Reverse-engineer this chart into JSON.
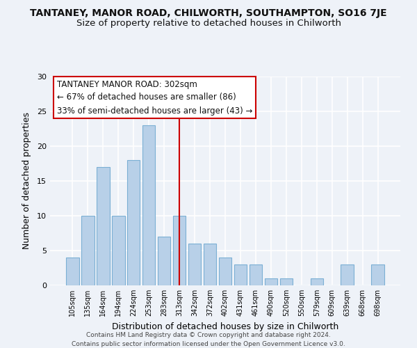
{
  "title": "TANTANEY, MANOR ROAD, CHILWORTH, SOUTHAMPTON, SO16 7JE",
  "subtitle": "Size of property relative to detached houses in Chilworth",
  "xlabel": "Distribution of detached houses by size in Chilworth",
  "ylabel": "Number of detached properties",
  "bar_labels": [
    "105sqm",
    "135sqm",
    "164sqm",
    "194sqm",
    "224sqm",
    "253sqm",
    "283sqm",
    "313sqm",
    "342sqm",
    "372sqm",
    "402sqm",
    "431sqm",
    "461sqm",
    "490sqm",
    "520sqm",
    "550sqm",
    "579sqm",
    "609sqm",
    "639sqm",
    "668sqm",
    "698sqm"
  ],
  "bar_values": [
    4,
    10,
    17,
    10,
    18,
    23,
    7,
    10,
    6,
    6,
    4,
    3,
    3,
    1,
    1,
    0,
    1,
    0,
    3,
    0,
    3
  ],
  "bar_color": "#b8d0e8",
  "bar_edge_color": "#7bafd4",
  "vline_x_index": 7,
  "vline_color": "#cc0000",
  "ylim": [
    0,
    30
  ],
  "yticks": [
    0,
    5,
    10,
    15,
    20,
    25,
    30
  ],
  "annotation_title": "TANTANEY MANOR ROAD: 302sqm",
  "annotation_line1": "← 67% of detached houses are smaller (86)",
  "annotation_line2": "33% of semi-detached houses are larger (43) →",
  "annotation_box_color": "#ffffff",
  "annotation_box_edge": "#cc0000",
  "footer_line1": "Contains HM Land Registry data © Crown copyright and database right 2024.",
  "footer_line2": "Contains public sector information licensed under the Open Government Licence v3.0.",
  "background_color": "#eef2f8",
  "grid_color": "#ffffff",
  "title_fontsize": 10,
  "subtitle_fontsize": 9.5,
  "annotation_fontsize": 8.5
}
